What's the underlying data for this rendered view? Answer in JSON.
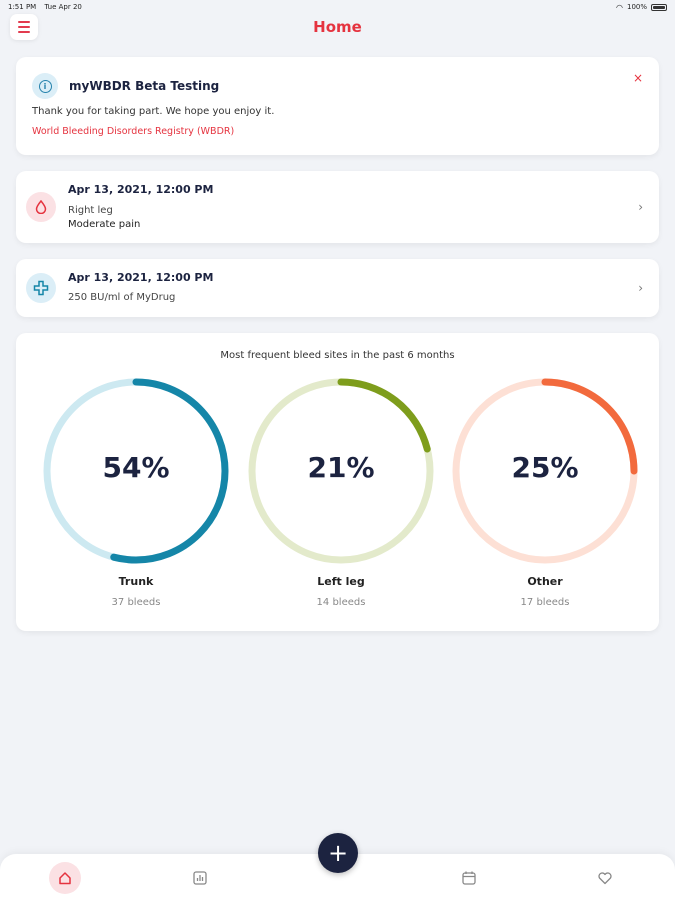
{
  "status_bar": {
    "time": "1:51 PM",
    "date": "Tue Apr 20",
    "battery": "100%"
  },
  "header": {
    "title": "Home"
  },
  "banner": {
    "title": "myWBDR Beta Testing",
    "message": "Thank you for taking part. We hope you enjoy it.",
    "link": "World Bleeding Disorders Registry (WBDR)",
    "close": "×"
  },
  "entries": [
    {
      "date": "Apr 13, 2021, 12:00 PM",
      "line1": "Right leg",
      "line2": "Moderate pain",
      "icon": "blood-drop-icon"
    },
    {
      "date": "Apr 13, 2021, 12:00 PM",
      "line1": "250 BU/ml of MyDrug",
      "icon": "medical-cross-icon"
    }
  ],
  "stats": {
    "title": "Most frequent bleed sites in the past 6 months",
    "sites": [
      {
        "percent_label": "54%",
        "fraction": 0.54,
        "label": "Trunk",
        "count": "37 bleeds",
        "color": "#1586a8",
        "track": "#cde9f1"
      },
      {
        "percent_label": "21%",
        "fraction": 0.21,
        "label": "Left leg",
        "count": "14 bleeds",
        "color": "#7e9d1c",
        "track": "#e3eacb"
      },
      {
        "percent_label": "25%",
        "fraction": 0.25,
        "label": "Other",
        "count": "17 bleeds",
        "color": "#f26a3d",
        "track": "#fde0d5"
      }
    ]
  },
  "bottom_nav": {
    "items": [
      "home-icon",
      "stats-icon",
      "calendar-icon",
      "heart-icon"
    ],
    "fab": "+"
  },
  "colors": {
    "accent": "#e5333f",
    "navy": "#1c2340"
  }
}
